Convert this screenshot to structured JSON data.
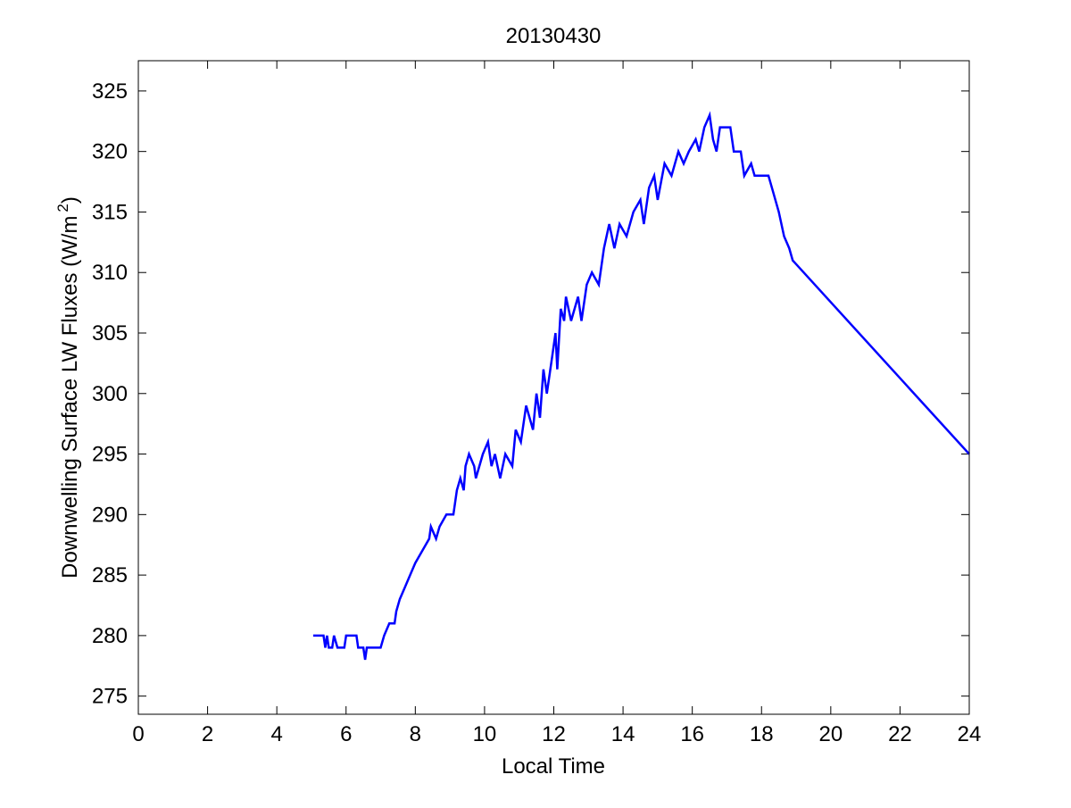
{
  "chart_data": {
    "type": "line",
    "title": "20130430",
    "xlabel": "Local Time",
    "ylabel": "Downwelling Surface LW Fluxes (W/m",
    "ylabel_superscript": "2",
    "ylabel_suffix": ")",
    "xlim": [
      0,
      24
    ],
    "ylim": [
      273.5,
      327.5
    ],
    "xticks": [
      0,
      2,
      4,
      6,
      8,
      10,
      12,
      14,
      16,
      18,
      20,
      22,
      24
    ],
    "yticks": [
      275,
      280,
      285,
      290,
      295,
      300,
      305,
      310,
      315,
      320,
      325
    ],
    "grid": false,
    "line_color": "#0000ff",
    "series": [
      {
        "x": [
          5.05,
          5.35,
          5.4,
          5.45,
          5.5,
          5.6,
          5.65,
          5.75,
          5.95,
          6.0,
          6.3,
          6.35,
          6.5,
          6.55,
          6.6,
          7.0,
          7.1,
          7.25,
          7.4,
          7.45,
          7.55,
          7.7,
          7.85,
          8.0,
          8.2,
          8.4,
          8.45,
          8.6,
          8.7,
          8.9,
          9.1,
          9.2,
          9.3,
          9.4,
          9.45,
          9.55,
          9.7,
          9.75,
          9.85,
          9.95,
          10.1,
          10.2,
          10.3,
          10.45,
          10.6,
          10.8,
          10.9,
          11.05,
          11.2,
          11.4,
          11.5,
          11.6,
          11.7,
          11.8,
          11.95,
          12.05,
          12.1,
          12.2,
          12.3,
          12.35,
          12.5,
          12.7,
          12.8,
          12.95,
          13.1,
          13.3,
          13.45,
          13.6,
          13.75,
          13.9,
          14.1,
          14.3,
          14.5,
          14.6,
          14.75,
          14.9,
          15.0,
          15.2,
          15.4,
          15.6,
          15.75,
          15.9,
          16.1,
          16.2,
          16.35,
          16.5,
          16.6,
          16.7,
          16.8,
          17.1,
          17.2,
          17.4,
          17.5,
          17.7,
          17.8,
          18.2,
          18.3,
          18.5,
          18.65,
          18.8,
          18.9,
          24
        ],
        "y": [
          280,
          280,
          279,
          280,
          279,
          279,
          280,
          279,
          279,
          280,
          280,
          279,
          279,
          278,
          279,
          279,
          280,
          281,
          281,
          282,
          283,
          284,
          285,
          286,
          287,
          288,
          289,
          288,
          289,
          290,
          290,
          292,
          293,
          292,
          294,
          295,
          294,
          293,
          294,
          295,
          296,
          294,
          295,
          293,
          295,
          294,
          297,
          296,
          299,
          297,
          300,
          298,
          302,
          300,
          303,
          305,
          302,
          307,
          306,
          308,
          306,
          308,
          306,
          309,
          310,
          309,
          312,
          314,
          312,
          314,
          313,
          315,
          316,
          314,
          317,
          318,
          316,
          319,
          318,
          320,
          319,
          320,
          321,
          320,
          322,
          323,
          321,
          320,
          322,
          322,
          320,
          320,
          318,
          319,
          318,
          318,
          317,
          315,
          313,
          312,
          311,
          295
        ]
      }
    ]
  }
}
